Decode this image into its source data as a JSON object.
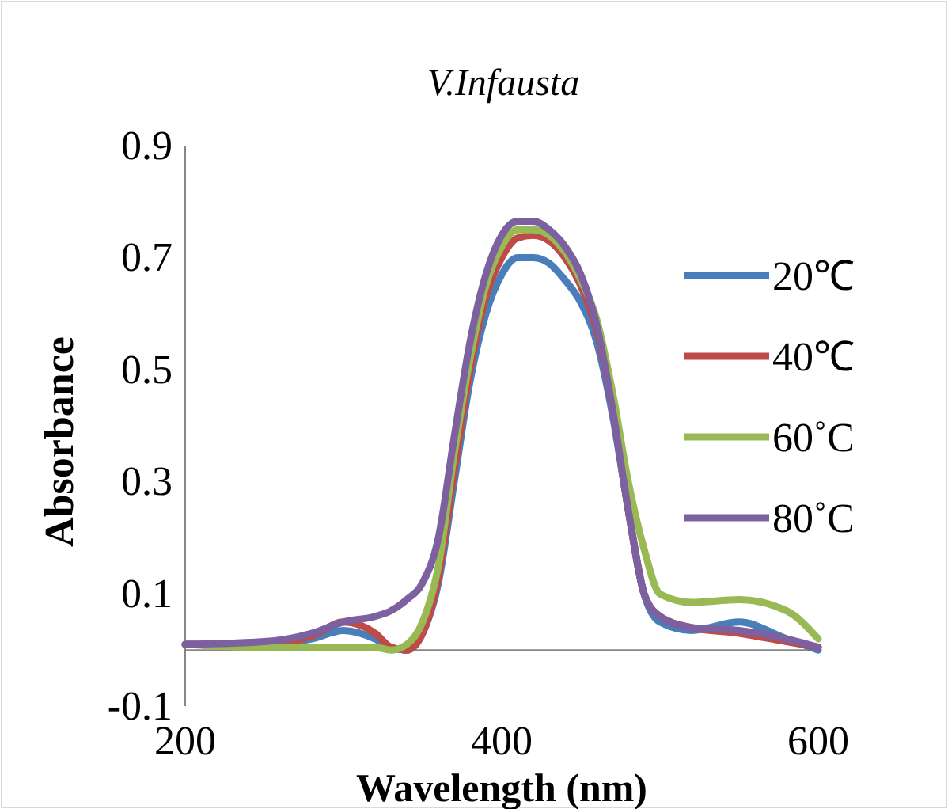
{
  "chart_data": {
    "type": "line",
    "title": "V.Infausta",
    "xlabel": "Wavelength (nm)",
    "ylabel": "Absorbance",
    "x": [
      200,
      250,
      280,
      300,
      320,
      330,
      340,
      350,
      360,
      370,
      380,
      390,
      400,
      410,
      420,
      430,
      440,
      450,
      460,
      470,
      480,
      490,
      500,
      520,
      550,
      580,
      600
    ],
    "xlim": [
      200,
      600
    ],
    "xticks": [
      200,
      400,
      600
    ],
    "ylim": [
      -0.1,
      0.9
    ],
    "yticks": [
      -0.1,
      0.1,
      0.3,
      0.5,
      0.7,
      0.9
    ],
    "grid": false,
    "legend": "right",
    "marker": "none",
    "line_style": "solid",
    "series": [
      {
        "name": "20℃",
        "color": "#4a7ebb",
        "values": [
          0.01,
          0.01,
          0.02,
          0.035,
          0.02,
          0.005,
          0,
          0.03,
          0.12,
          0.3,
          0.48,
          0.6,
          0.67,
          0.7,
          0.7,
          0.69,
          0.66,
          0.62,
          0.55,
          0.42,
          0.25,
          0.1,
          0.05,
          0.035,
          0.05,
          0.02,
          0
        ]
      },
      {
        "name": "40℃",
        "color": "#be4b48",
        "values": [
          0.01,
          0.01,
          0.025,
          0.05,
          0.03,
          0.005,
          0,
          0.03,
          0.13,
          0.32,
          0.5,
          0.63,
          0.7,
          0.735,
          0.74,
          0.73,
          0.7,
          0.65,
          0.57,
          0.43,
          0.25,
          0.1,
          0.06,
          0.04,
          0.03,
          0.015,
          0.005
        ]
      },
      {
        "name": "60˚C",
        "color": "#98b954",
        "values": [
          0.01,
          0.005,
          0.005,
          0.005,
          0.005,
          0,
          0.01,
          0.05,
          0.15,
          0.35,
          0.52,
          0.65,
          0.72,
          0.75,
          0.75,
          0.74,
          0.71,
          0.66,
          0.59,
          0.46,
          0.3,
          0.18,
          0.1,
          0.085,
          0.09,
          0.07,
          0.02
        ]
      },
      {
        "name": "80˚C",
        "color": "#7d60a0",
        "values": [
          0.01,
          0.015,
          0.03,
          0.05,
          0.06,
          0.07,
          0.09,
          0.12,
          0.2,
          0.38,
          0.55,
          0.67,
          0.74,
          0.765,
          0.765,
          0.75,
          0.72,
          0.67,
          0.58,
          0.43,
          0.25,
          0.1,
          0.06,
          0.04,
          0.035,
          0.02,
          0.005
        ]
      }
    ]
  }
}
